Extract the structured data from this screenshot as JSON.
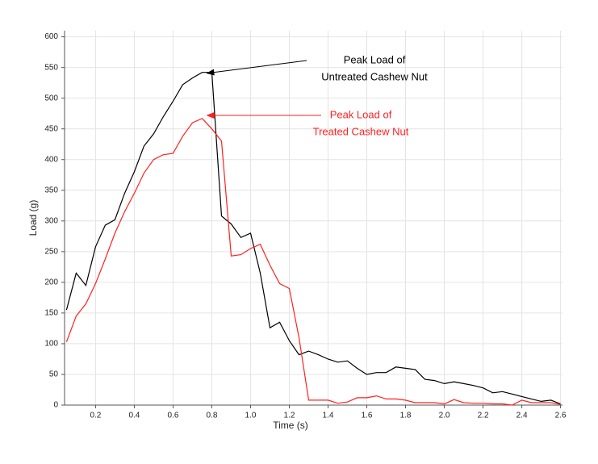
{
  "chart_data": {
    "type": "line",
    "x_label": "Time (s)",
    "y_label": "Load (g)",
    "x": [
      0.05,
      0.1,
      0.15,
      0.2,
      0.25,
      0.3,
      0.35,
      0.4,
      0.45,
      0.5,
      0.55,
      0.6,
      0.65,
      0.7,
      0.75,
      0.8,
      0.85,
      0.9,
      0.95,
      1.0,
      1.05,
      1.1,
      1.15,
      1.2,
      1.25,
      1.3,
      1.35,
      1.4,
      1.45,
      1.5,
      1.55,
      1.6,
      1.65,
      1.7,
      1.75,
      1.8,
      1.85,
      1.9,
      1.95,
      2.0,
      2.05,
      2.1,
      2.15,
      2.2,
      2.25,
      2.3,
      2.35,
      2.4,
      2.45,
      2.5,
      2.55,
      2.6
    ],
    "series": [
      {
        "name": "Untreated Cashew Nut",
        "color": "#000000",
        "values": [
          155,
          215,
          195,
          258,
          293,
          302,
          345,
          380,
          422,
          442,
          470,
          495,
          522,
          533,
          542,
          542,
          308,
          295,
          273,
          280,
          215,
          126,
          135,
          105,
          82,
          88,
          82,
          75,
          70,
          72,
          60,
          50,
          53,
          53,
          62,
          60,
          58,
          42,
          40,
          35,
          38,
          35,
          32,
          28,
          20,
          22,
          18,
          14,
          10,
          6,
          8,
          2
        ]
      },
      {
        "name": "Treated Cashew Nut",
        "color": "#ff2020",
        "values": [
          103,
          145,
          165,
          198,
          238,
          280,
          315,
          345,
          378,
          400,
          408,
          410,
          438,
          460,
          467,
          450,
          430,
          243,
          245,
          255,
          262,
          228,
          198,
          190,
          110,
          8,
          8,
          8,
          3,
          5,
          12,
          12,
          15,
          10,
          10,
          8,
          4,
          4,
          4,
          2,
          9,
          4,
          3,
          3,
          2,
          2,
          0,
          8,
          4,
          4,
          4,
          1
        ]
      }
    ],
    "annotations": [
      {
        "lines": [
          "Peak Load of",
          "Untreated Cashew Nut"
        ],
        "color": "#000000"
      },
      {
        "lines": [
          "Peak Load of",
          "Treated Cashew Nut"
        ],
        "color": "#ff2020"
      }
    ],
    "xlim": [
      0.04,
      2.61
    ],
    "xticks": [
      0.2,
      0.4,
      0.6,
      0.8,
      {
        "value": 1,
        "label": "1.0"
      },
      1.2,
      1.4,
      1.6,
      1.8,
      {
        "value": 2,
        "label": "2.0"
      },
      2.2,
      2.4,
      2.6
    ],
    "ylim": [
      0,
      610
    ],
    "yticks": [
      0,
      50,
      100,
      150,
      200,
      250,
      300,
      350,
      400,
      450,
      500,
      550,
      600
    ],
    "grid": true
  }
}
